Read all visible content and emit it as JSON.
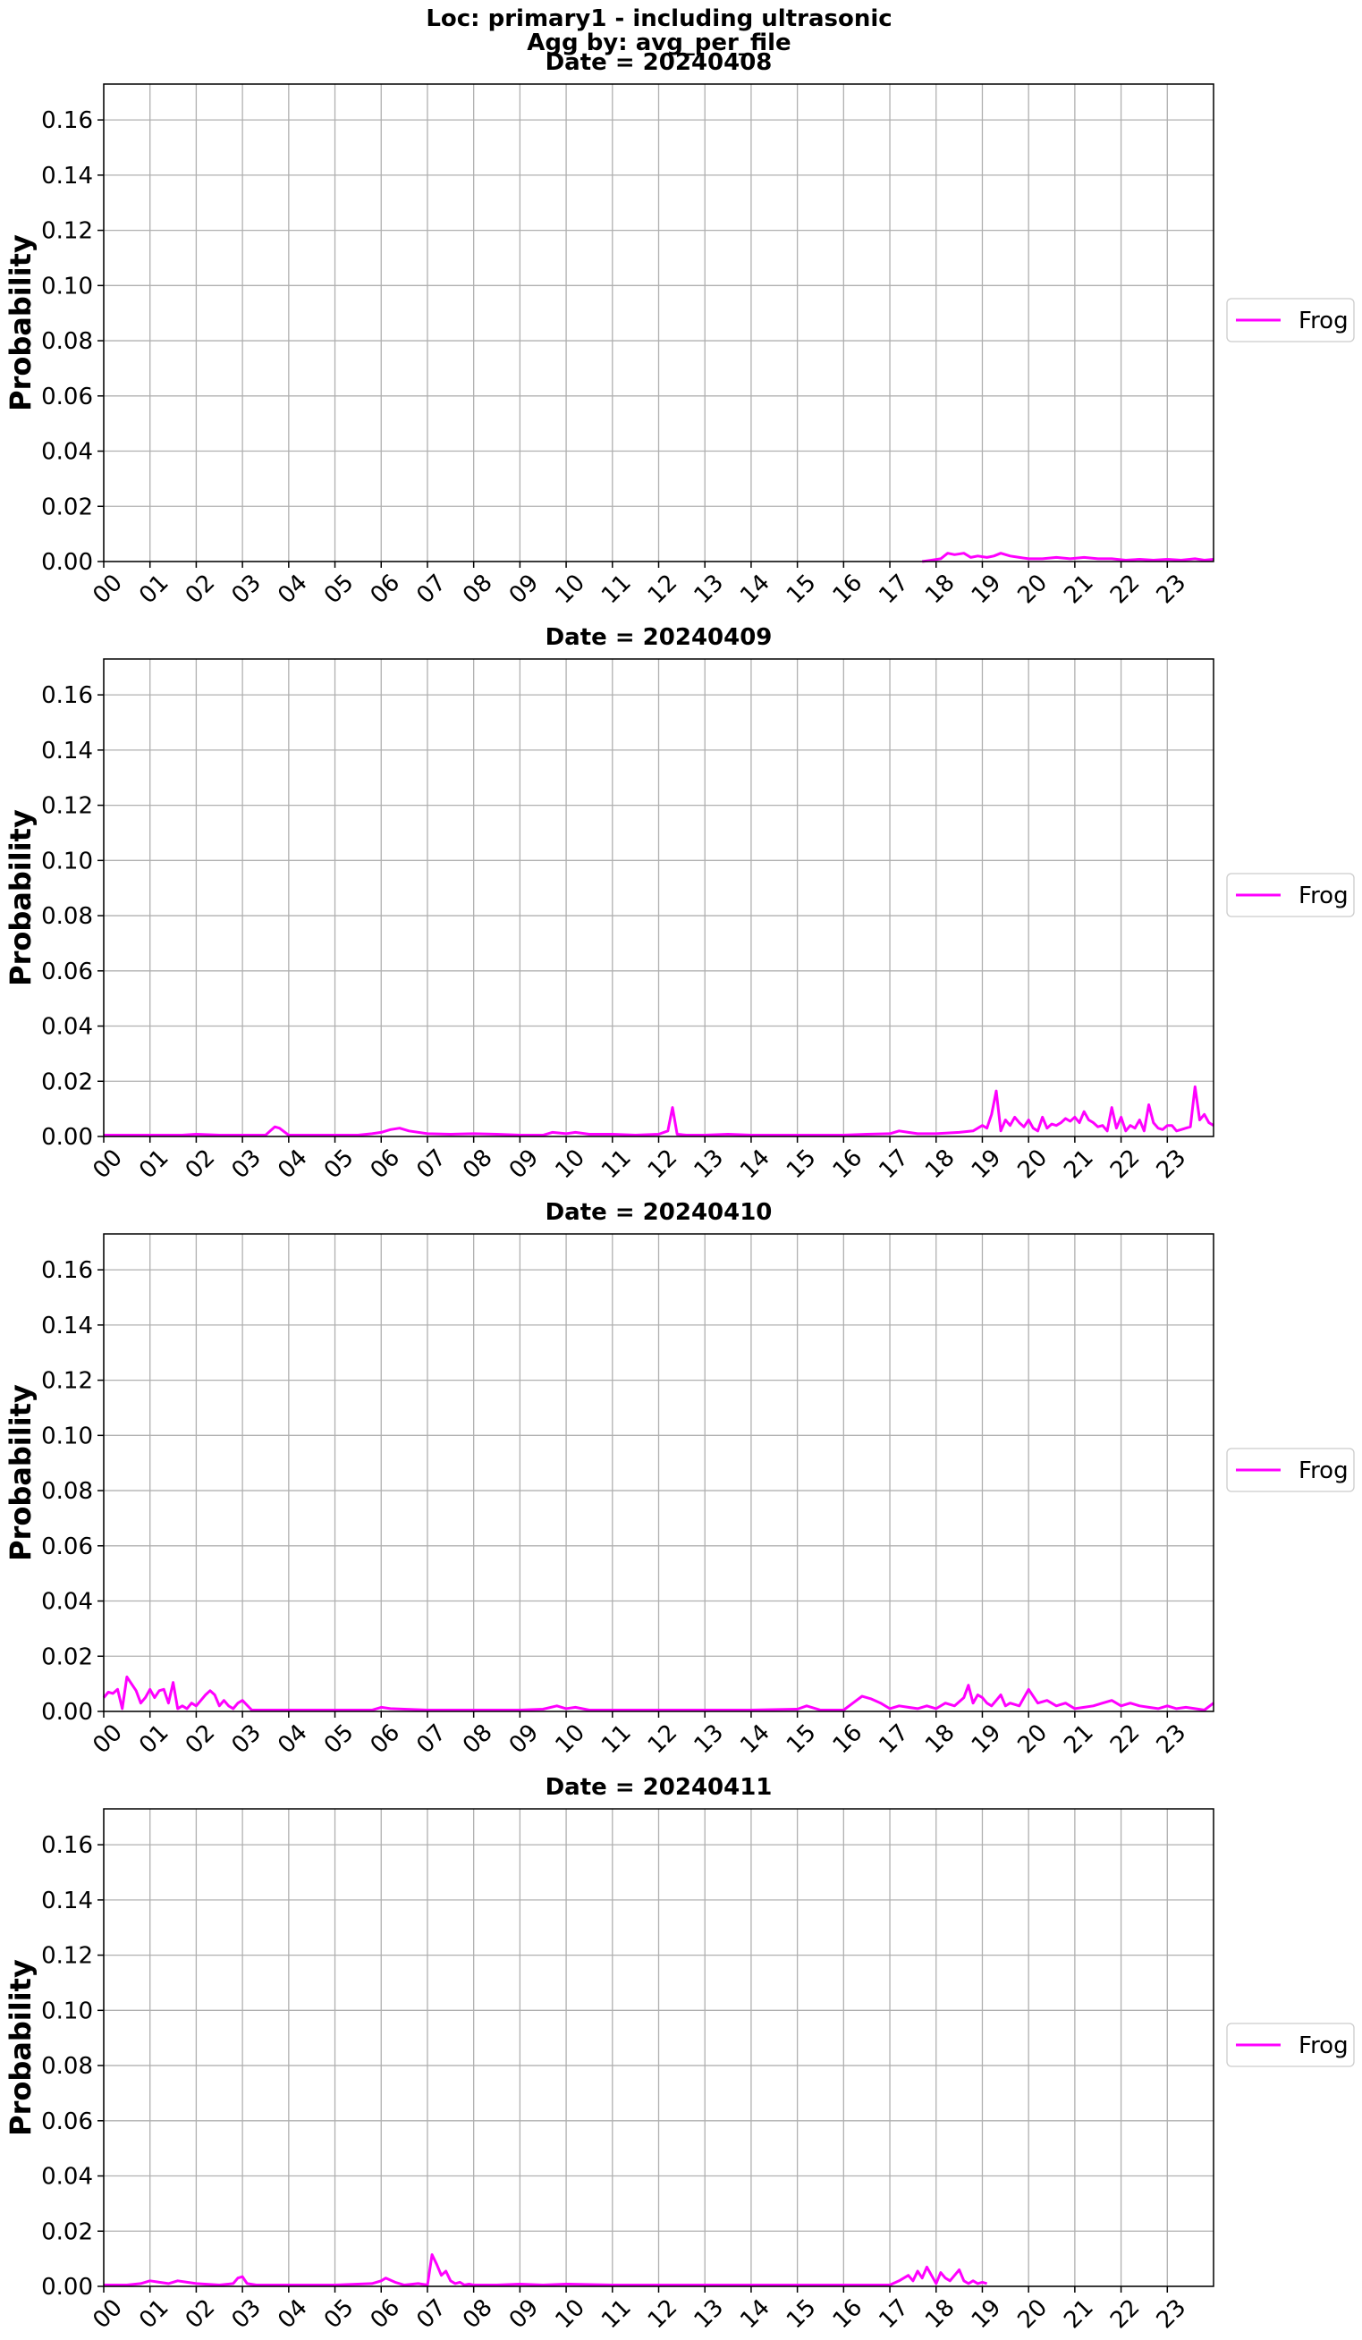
{
  "figure": {
    "title_lines": [
      "Loc: primary1 - including ultrasonic",
      "Agg by: avg_per_file"
    ]
  },
  "colors": {
    "series": "#ff00ff",
    "grid": "#b0b0b0",
    "axes": "#000000"
  },
  "chart_data": [
    {
      "type": "line",
      "title": "Date = 20240408",
      "xlabel": "",
      "ylabel": "Probability",
      "xlim": [
        0,
        24
      ],
      "ylim": [
        0,
        0.173
      ],
      "x_ticks": [
        "00",
        "01",
        "02",
        "03",
        "04",
        "05",
        "06",
        "07",
        "08",
        "09",
        "10",
        "11",
        "12",
        "13",
        "14",
        "15",
        "16",
        "17",
        "18",
        "19",
        "20",
        "21",
        "22",
        "23"
      ],
      "y_ticks": [
        "0.00",
        "0.02",
        "0.04",
        "0.06",
        "0.08",
        "0.10",
        "0.12",
        "0.14",
        "0.16"
      ],
      "grid": true,
      "legend": "center-right",
      "series": [
        {
          "name": "Frog",
          "x": [
            17.7,
            17.9,
            18.1,
            18.25,
            18.4,
            18.6,
            18.75,
            18.9,
            19.1,
            19.25,
            19.4,
            19.6,
            19.8,
            20.0,
            20.3,
            20.6,
            20.9,
            21.2,
            21.5,
            21.8,
            22.1,
            22.4,
            22.7,
            23.0,
            23.3,
            23.6,
            23.8,
            24.0
          ],
          "y": [
            0.0,
            0.0005,
            0.001,
            0.003,
            0.0025,
            0.003,
            0.0015,
            0.002,
            0.0015,
            0.002,
            0.003,
            0.002,
            0.0015,
            0.001,
            0.001,
            0.0015,
            0.001,
            0.0015,
            0.001,
            0.001,
            0.0005,
            0.0008,
            0.0005,
            0.0008,
            0.0005,
            0.001,
            0.0005,
            0.0008
          ]
        }
      ]
    },
    {
      "type": "line",
      "title": "Date = 20240409",
      "xlabel": "",
      "ylabel": "Probability",
      "xlim": [
        0,
        24
      ],
      "ylim": [
        0,
        0.173
      ],
      "x_ticks": [
        "00",
        "01",
        "02",
        "03",
        "04",
        "05",
        "06",
        "07",
        "08",
        "09",
        "10",
        "11",
        "12",
        "13",
        "14",
        "15",
        "16",
        "17",
        "18",
        "19",
        "20",
        "21",
        "22",
        "23"
      ],
      "y_ticks": [
        "0.00",
        "0.02",
        "0.04",
        "0.06",
        "0.08",
        "0.10",
        "0.12",
        "0.14",
        "0.16"
      ],
      "grid": true,
      "legend": "center-right",
      "series": [
        {
          "name": "Frog",
          "x": [
            0.0,
            0.5,
            1.0,
            1.5,
            1.7,
            2.0,
            2.5,
            3.0,
            3.5,
            3.6,
            3.7,
            3.8,
            4.0,
            4.5,
            5.0,
            5.5,
            5.8,
            6.0,
            6.2,
            6.4,
            6.6,
            7.0,
            7.5,
            8.0,
            8.5,
            9.0,
            9.5,
            9.7,
            10.0,
            10.2,
            10.5,
            11.0,
            11.5,
            12.0,
            12.2,
            12.3,
            12.4,
            12.6,
            13.0,
            13.5,
            14.0,
            15.0,
            16.0,
            16.5,
            17.0,
            17.2,
            17.4,
            17.6,
            18.0,
            18.5,
            18.8,
            19.0,
            19.1,
            19.2,
            19.3,
            19.4,
            19.5,
            19.6,
            19.7,
            19.8,
            19.9,
            20.0,
            20.1,
            20.2,
            20.3,
            20.4,
            20.5,
            20.6,
            20.7,
            20.8,
            20.9,
            21.0,
            21.1,
            21.2,
            21.3,
            21.4,
            21.5,
            21.6,
            21.7,
            21.8,
            21.9,
            22.0,
            22.1,
            22.2,
            22.3,
            22.4,
            22.5,
            22.6,
            22.7,
            22.8,
            22.9,
            23.0,
            23.1,
            23.2,
            23.3,
            23.4,
            23.5,
            23.6,
            23.7,
            23.8,
            23.9,
            24.0
          ],
          "y": [
            0.0005,
            0.0005,
            0.0005,
            0.0005,
            0.0005,
            0.0008,
            0.0005,
            0.0005,
            0.0005,
            0.002,
            0.0035,
            0.003,
            0.0005,
            0.0005,
            0.0005,
            0.0005,
            0.001,
            0.0015,
            0.0025,
            0.003,
            0.002,
            0.001,
            0.0008,
            0.001,
            0.0008,
            0.0005,
            0.0005,
            0.0015,
            0.001,
            0.0015,
            0.0008,
            0.0008,
            0.0005,
            0.0008,
            0.002,
            0.0105,
            0.0008,
            0.0005,
            0.0005,
            0.0008,
            0.0005,
            0.0005,
            0.0005,
            0.0008,
            0.001,
            0.002,
            0.0015,
            0.001,
            0.001,
            0.0015,
            0.002,
            0.004,
            0.003,
            0.008,
            0.0165,
            0.002,
            0.006,
            0.004,
            0.007,
            0.005,
            0.0035,
            0.006,
            0.003,
            0.002,
            0.007,
            0.003,
            0.0045,
            0.004,
            0.005,
            0.0065,
            0.0055,
            0.007,
            0.005,
            0.009,
            0.006,
            0.005,
            0.0035,
            0.004,
            0.002,
            0.0105,
            0.003,
            0.007,
            0.002,
            0.004,
            0.003,
            0.006,
            0.002,
            0.0115,
            0.005,
            0.003,
            0.0025,
            0.004,
            0.004,
            0.002,
            0.0025,
            0.003,
            0.0035,
            0.018,
            0.006,
            0.008,
            0.005,
            0.004
          ]
        }
      ]
    },
    {
      "type": "line",
      "title": "Date = 20240410",
      "xlabel": "",
      "ylabel": "Probability",
      "xlim": [
        0,
        24
      ],
      "ylim": [
        0,
        0.173
      ],
      "x_ticks": [
        "00",
        "01",
        "02",
        "03",
        "04",
        "05",
        "06",
        "07",
        "08",
        "09",
        "10",
        "11",
        "12",
        "13",
        "14",
        "15",
        "16",
        "17",
        "18",
        "19",
        "20",
        "21",
        "22",
        "23"
      ],
      "y_ticks": [
        "0.00",
        "0.02",
        "0.04",
        "0.06",
        "0.08",
        "0.10",
        "0.12",
        "0.14",
        "0.16"
      ],
      "grid": true,
      "legend": "center-right",
      "series": [
        {
          "name": "Frog",
          "x": [
            0.0,
            0.1,
            0.2,
            0.3,
            0.4,
            0.5,
            0.6,
            0.7,
            0.8,
            0.9,
            1.0,
            1.1,
            1.2,
            1.3,
            1.4,
            1.5,
            1.6,
            1.7,
            1.8,
            1.9,
            2.0,
            2.1,
            2.2,
            2.3,
            2.4,
            2.5,
            2.6,
            2.7,
            2.8,
            2.9,
            3.0,
            3.2,
            3.5,
            4.0,
            5.0,
            5.8,
            6.0,
            6.2,
            6.5,
            7.0,
            8.0,
            9.0,
            9.5,
            9.8,
            10.0,
            10.2,
            10.5,
            11.0,
            12.0,
            13.0,
            14.0,
            15.0,
            15.2,
            15.5,
            16.0,
            16.2,
            16.4,
            16.6,
            16.8,
            17.0,
            17.2,
            17.4,
            17.6,
            17.8,
            18.0,
            18.2,
            18.4,
            18.6,
            18.7,
            18.8,
            18.9,
            19.0,
            19.1,
            19.2,
            19.3,
            19.4,
            19.5,
            19.6,
            19.8,
            20.0,
            20.2,
            20.4,
            20.6,
            20.8,
            21.0,
            21.2,
            21.4,
            21.6,
            21.8,
            22.0,
            22.2,
            22.4,
            22.6,
            22.8,
            23.0,
            23.2,
            23.4,
            23.6,
            23.8,
            24.0
          ],
          "y": [
            0.005,
            0.007,
            0.0065,
            0.008,
            0.001,
            0.0125,
            0.01,
            0.0075,
            0.003,
            0.005,
            0.008,
            0.005,
            0.0075,
            0.008,
            0.003,
            0.0105,
            0.001,
            0.002,
            0.001,
            0.003,
            0.002,
            0.004,
            0.006,
            0.0075,
            0.006,
            0.002,
            0.004,
            0.002,
            0.001,
            0.003,
            0.004,
            0.0005,
            0.0005,
            0.0005,
            0.0005,
            0.0005,
            0.0015,
            0.001,
            0.0008,
            0.0005,
            0.0005,
            0.0005,
            0.0008,
            0.002,
            0.001,
            0.0015,
            0.0005,
            0.0005,
            0.0005,
            0.0005,
            0.0005,
            0.0008,
            0.002,
            0.0005,
            0.0005,
            0.003,
            0.0055,
            0.0045,
            0.003,
            0.001,
            0.002,
            0.0015,
            0.001,
            0.002,
            0.001,
            0.003,
            0.002,
            0.005,
            0.0095,
            0.003,
            0.006,
            0.005,
            0.003,
            0.002,
            0.004,
            0.006,
            0.002,
            0.003,
            0.002,
            0.008,
            0.003,
            0.004,
            0.002,
            0.003,
            0.001,
            0.0015,
            0.002,
            0.003,
            0.004,
            0.002,
            0.003,
            0.002,
            0.0015,
            0.001,
            0.002,
            0.001,
            0.0015,
            0.001,
            0.0005,
            0.003
          ]
        }
      ]
    },
    {
      "type": "line",
      "title": "Date = 20240411",
      "xlabel": "",
      "ylabel": "Probability",
      "xlim": [
        0,
        24
      ],
      "ylim": [
        0,
        0.173
      ],
      "x_ticks": [
        "00",
        "01",
        "02",
        "03",
        "04",
        "05",
        "06",
        "07",
        "08",
        "09",
        "10",
        "11",
        "12",
        "13",
        "14",
        "15",
        "16",
        "17",
        "18",
        "19",
        "20",
        "21",
        "22",
        "23"
      ],
      "y_ticks": [
        "0.00",
        "0.02",
        "0.04",
        "0.06",
        "0.08",
        "0.10",
        "0.12",
        "0.14",
        "0.16"
      ],
      "grid": true,
      "legend": "center-right",
      "series": [
        {
          "name": "Frog",
          "x": [
            0.0,
            0.5,
            0.8,
            1.0,
            1.2,
            1.4,
            1.6,
            1.8,
            2.0,
            2.5,
            2.8,
            2.9,
            3.0,
            3.1,
            3.3,
            3.5,
            4.0,
            5.0,
            5.8,
            6.0,
            6.1,
            6.3,
            6.5,
            6.8,
            7.0,
            7.1,
            7.2,
            7.3,
            7.4,
            7.5,
            7.6,
            7.7,
            7.8,
            7.9,
            8.0,
            8.2,
            8.5,
            9.0,
            9.5,
            10.0,
            11.0,
            12.0,
            13.0,
            14.0,
            15.0,
            16.0,
            17.0,
            17.2,
            17.4,
            17.5,
            17.6,
            17.7,
            17.8,
            17.9,
            18.0,
            18.1,
            18.2,
            18.3,
            18.4,
            18.5,
            18.6,
            18.7,
            18.8,
            18.9,
            19.0,
            19.1
          ],
          "y": [
            0.0005,
            0.0005,
            0.001,
            0.002,
            0.0015,
            0.001,
            0.002,
            0.0015,
            0.001,
            0.0005,
            0.001,
            0.003,
            0.0035,
            0.001,
            0.0005,
            0.0005,
            0.0005,
            0.0005,
            0.001,
            0.002,
            0.003,
            0.0015,
            0.0005,
            0.001,
            0.0005,
            0.0115,
            0.008,
            0.004,
            0.0055,
            0.002,
            0.001,
            0.0015,
            0.0005,
            0.0008,
            0.0005,
            0.0005,
            0.0005,
            0.0008,
            0.0005,
            0.0008,
            0.0005,
            0.0005,
            0.0005,
            0.0005,
            0.0005,
            0.0005,
            0.0005,
            0.002,
            0.004,
            0.002,
            0.0055,
            0.003,
            0.007,
            0.004,
            0.001,
            0.005,
            0.003,
            0.002,
            0.004,
            0.006,
            0.002,
            0.001,
            0.002,
            0.001,
            0.0015,
            0.001
          ]
        }
      ]
    }
  ]
}
